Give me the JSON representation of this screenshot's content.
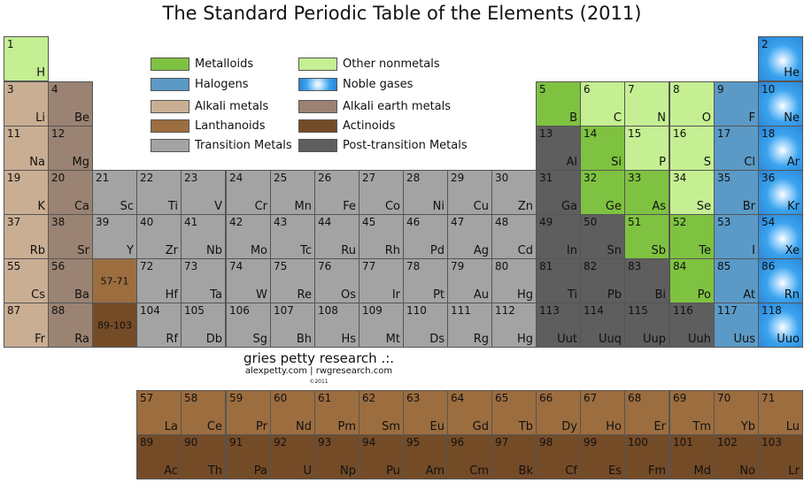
{
  "title": "The Standard Periodic Table of the Elements (2011)",
  "credits": {
    "name": "gries petty research .:.",
    "sites": "alexpetty.com | rwgresearch.com",
    "copyright": "©2011"
  },
  "colors": {
    "alkali": "#c9ae93",
    "alkaline": "#9a8372",
    "transition": "#a3a3a3",
    "post": "#5e5e5e",
    "metalloid": "#7fc241",
    "nonmetal": "#c5ef92",
    "halogen": "#5b9ac6",
    "noble": "#3aa3ee",
    "lanthanoid": "#9c6d3f",
    "actinoid": "#744b27"
  },
  "legend": [
    {
      "label": "Metalloids",
      "category": "metalloid"
    },
    {
      "label": "Other nonmetals",
      "category": "nonmetal"
    },
    {
      "label": "Halogens",
      "category": "halogen"
    },
    {
      "label": "Noble gases",
      "category": "noble"
    },
    {
      "label": "Alkali metals",
      "category": "alkali"
    },
    {
      "label": "Alkali earth metals",
      "category": "alkaline"
    },
    {
      "label": "Lanthanoids",
      "category": "lanthanoid"
    },
    {
      "label": "Actinoids",
      "category": "actinoid"
    },
    {
      "label": "Transition Metals",
      "category": "transition"
    },
    {
      "label": "Post-transition Metals",
      "category": "post"
    }
  ],
  "elements": [
    {
      "n": "1",
      "s": "H",
      "r": 1,
      "c": 1,
      "cat": "nonmetal"
    },
    {
      "n": "2",
      "s": "He",
      "r": 1,
      "c": 18,
      "cat": "noble"
    },
    {
      "n": "3",
      "s": "Li",
      "r": 2,
      "c": 1,
      "cat": "alkali"
    },
    {
      "n": "4",
      "s": "Be",
      "r": 2,
      "c": 2,
      "cat": "alkaline"
    },
    {
      "n": "5",
      "s": "B",
      "r": 2,
      "c": 13,
      "cat": "metalloid"
    },
    {
      "n": "6",
      "s": "C",
      "r": 2,
      "c": 14,
      "cat": "nonmetal"
    },
    {
      "n": "7",
      "s": "N",
      "r": 2,
      "c": 15,
      "cat": "nonmetal"
    },
    {
      "n": "8",
      "s": "O",
      "r": 2,
      "c": 16,
      "cat": "nonmetal"
    },
    {
      "n": "9",
      "s": "F",
      "r": 2,
      "c": 17,
      "cat": "halogen"
    },
    {
      "n": "10",
      "s": "Ne",
      "r": 2,
      "c": 18,
      "cat": "noble"
    },
    {
      "n": "11",
      "s": "Na",
      "r": 3,
      "c": 1,
      "cat": "alkali"
    },
    {
      "n": "12",
      "s": "Mg",
      "r": 3,
      "c": 2,
      "cat": "alkaline"
    },
    {
      "n": "13",
      "s": "Al",
      "r": 3,
      "c": 13,
      "cat": "post"
    },
    {
      "n": "14",
      "s": "Si",
      "r": 3,
      "c": 14,
      "cat": "metalloid"
    },
    {
      "n": "15",
      "s": "P",
      "r": 3,
      "c": 15,
      "cat": "nonmetal"
    },
    {
      "n": "16",
      "s": "S",
      "r": 3,
      "c": 16,
      "cat": "nonmetal"
    },
    {
      "n": "17",
      "s": "Cl",
      "r": 3,
      "c": 17,
      "cat": "halogen"
    },
    {
      "n": "18",
      "s": "Ar",
      "r": 3,
      "c": 18,
      "cat": "noble"
    },
    {
      "n": "19",
      "s": "K",
      "r": 4,
      "c": 1,
      "cat": "alkali"
    },
    {
      "n": "20",
      "s": "Ca",
      "r": 4,
      "c": 2,
      "cat": "alkaline"
    },
    {
      "n": "21",
      "s": "Sc",
      "r": 4,
      "c": 3,
      "cat": "transition"
    },
    {
      "n": "22",
      "s": "Ti",
      "r": 4,
      "c": 4,
      "cat": "transition"
    },
    {
      "n": "23",
      "s": "V",
      "r": 4,
      "c": 5,
      "cat": "transition"
    },
    {
      "n": "24",
      "s": "Cr",
      "r": 4,
      "c": 6,
      "cat": "transition"
    },
    {
      "n": "25",
      "s": "Mn",
      "r": 4,
      "c": 7,
      "cat": "transition"
    },
    {
      "n": "26",
      "s": "Fe",
      "r": 4,
      "c": 8,
      "cat": "transition"
    },
    {
      "n": "27",
      "s": "Co",
      "r": 4,
      "c": 9,
      "cat": "transition"
    },
    {
      "n": "28",
      "s": "Ni",
      "r": 4,
      "c": 10,
      "cat": "transition"
    },
    {
      "n": "29",
      "s": "Cu",
      "r": 4,
      "c": 11,
      "cat": "transition"
    },
    {
      "n": "30",
      "s": "Zn",
      "r": 4,
      "c": 12,
      "cat": "transition"
    },
    {
      "n": "31",
      "s": "Ga",
      "r": 4,
      "c": 13,
      "cat": "post"
    },
    {
      "n": "32",
      "s": "Ge",
      "r": 4,
      "c": 14,
      "cat": "metalloid"
    },
    {
      "n": "33",
      "s": "As",
      "r": 4,
      "c": 15,
      "cat": "metalloid"
    },
    {
      "n": "34",
      "s": "Se",
      "r": 4,
      "c": 16,
      "cat": "nonmetal"
    },
    {
      "n": "35",
      "s": "Br",
      "r": 4,
      "c": 17,
      "cat": "halogen"
    },
    {
      "n": "36",
      "s": "Kr",
      "r": 4,
      "c": 18,
      "cat": "noble"
    },
    {
      "n": "37",
      "s": "Rb",
      "r": 5,
      "c": 1,
      "cat": "alkali"
    },
    {
      "n": "38",
      "s": "Sr",
      "r": 5,
      "c": 2,
      "cat": "alkaline"
    },
    {
      "n": "39",
      "s": "Y",
      "r": 5,
      "c": 3,
      "cat": "transition"
    },
    {
      "n": "40",
      "s": "Zr",
      "r": 5,
      "c": 4,
      "cat": "transition"
    },
    {
      "n": "41",
      "s": "Nb",
      "r": 5,
      "c": 5,
      "cat": "transition"
    },
    {
      "n": "42",
      "s": "Mo",
      "r": 5,
      "c": 6,
      "cat": "transition"
    },
    {
      "n": "43",
      "s": "Tc",
      "r": 5,
      "c": 7,
      "cat": "transition"
    },
    {
      "n": "44",
      "s": "Ru",
      "r": 5,
      "c": 8,
      "cat": "transition"
    },
    {
      "n": "45",
      "s": "Rh",
      "r": 5,
      "c": 9,
      "cat": "transition"
    },
    {
      "n": "46",
      "s": "Pd",
      "r": 5,
      "c": 10,
      "cat": "transition"
    },
    {
      "n": "47",
      "s": "Ag",
      "r": 5,
      "c": 11,
      "cat": "transition"
    },
    {
      "n": "48",
      "s": "Cd",
      "r": 5,
      "c": 12,
      "cat": "transition"
    },
    {
      "n": "49",
      "s": "In",
      "r": 5,
      "c": 13,
      "cat": "post"
    },
    {
      "n": "50",
      "s": "Sn",
      "r": 5,
      "c": 14,
      "cat": "post"
    },
    {
      "n": "51",
      "s": "Sb",
      "r": 5,
      "c": 15,
      "cat": "metalloid"
    },
    {
      "n": "52",
      "s": "Te",
      "r": 5,
      "c": 16,
      "cat": "metalloid"
    },
    {
      "n": "53",
      "s": "I",
      "r": 5,
      "c": 17,
      "cat": "halogen"
    },
    {
      "n": "54",
      "s": "Xe",
      "r": 5,
      "c": 18,
      "cat": "noble"
    },
    {
      "n": "55",
      "s": "Cs",
      "r": 6,
      "c": 1,
      "cat": "alkali"
    },
    {
      "n": "56",
      "s": "Ba",
      "r": 6,
      "c": 2,
      "cat": "alkaline"
    },
    {
      "n": "",
      "s": "",
      "ref": "57-71",
      "r": 6,
      "c": 3,
      "cat": "lanthanoid"
    },
    {
      "n": "72",
      "s": "Hf",
      "r": 6,
      "c": 4,
      "cat": "transition"
    },
    {
      "n": "73",
      "s": "Ta",
      "r": 6,
      "c": 5,
      "cat": "transition"
    },
    {
      "n": "74",
      "s": "W",
      "r": 6,
      "c": 6,
      "cat": "transition"
    },
    {
      "n": "75",
      "s": "Re",
      "r": 6,
      "c": 7,
      "cat": "transition"
    },
    {
      "n": "76",
      "s": "Os",
      "r": 6,
      "c": 8,
      "cat": "transition"
    },
    {
      "n": "77",
      "s": "Ir",
      "r": 6,
      "c": 9,
      "cat": "transition"
    },
    {
      "n": "78",
      "s": "Pt",
      "r": 6,
      "c": 10,
      "cat": "transition"
    },
    {
      "n": "79",
      "s": "Au",
      "r": 6,
      "c": 11,
      "cat": "transition"
    },
    {
      "n": "80",
      "s": "Hg",
      "r": 6,
      "c": 12,
      "cat": "transition"
    },
    {
      "n": "81",
      "s": "Ti",
      "r": 6,
      "c": 13,
      "cat": "post"
    },
    {
      "n": "82",
      "s": "Pb",
      "r": 6,
      "c": 14,
      "cat": "post"
    },
    {
      "n": "83",
      "s": "Bi",
      "r": 6,
      "c": 15,
      "cat": "post"
    },
    {
      "n": "84",
      "s": "Po",
      "r": 6,
      "c": 16,
      "cat": "metalloid"
    },
    {
      "n": "85",
      "s": "At",
      "r": 6,
      "c": 17,
      "cat": "halogen"
    },
    {
      "n": "86",
      "s": "Rn",
      "r": 6,
      "c": 18,
      "cat": "noble"
    },
    {
      "n": "87",
      "s": "Fr",
      "r": 7,
      "c": 1,
      "cat": "alkali"
    },
    {
      "n": "88",
      "s": "Ra",
      "r": 7,
      "c": 2,
      "cat": "alkaline"
    },
    {
      "n": "",
      "s": "",
      "ref": "89-103",
      "r": 7,
      "c": 3,
      "cat": "actinoid"
    },
    {
      "n": "104",
      "s": "Rf",
      "r": 7,
      "c": 4,
      "cat": "transition"
    },
    {
      "n": "105",
      "s": "Db",
      "r": 7,
      "c": 5,
      "cat": "transition"
    },
    {
      "n": "106",
      "s": "Sg",
      "r": 7,
      "c": 6,
      "cat": "transition"
    },
    {
      "n": "107",
      "s": "Bh",
      "r": 7,
      "c": 7,
      "cat": "transition"
    },
    {
      "n": "108",
      "s": "Hs",
      "r": 7,
      "c": 8,
      "cat": "transition"
    },
    {
      "n": "109",
      "s": "Mt",
      "r": 7,
      "c": 9,
      "cat": "transition"
    },
    {
      "n": "110",
      "s": "Ds",
      "r": 7,
      "c": 10,
      "cat": "transition"
    },
    {
      "n": "111",
      "s": "Rg",
      "r": 7,
      "c": 11,
      "cat": "transition"
    },
    {
      "n": "112",
      "s": "Hg",
      "r": 7,
      "c": 12,
      "cat": "transition"
    },
    {
      "n": "113",
      "s": "Uut",
      "r": 7,
      "c": 13,
      "cat": "post"
    },
    {
      "n": "114",
      "s": "Uuq",
      "r": 7,
      "c": 14,
      "cat": "post"
    },
    {
      "n": "115",
      "s": "Uup",
      "r": 7,
      "c": 15,
      "cat": "post"
    },
    {
      "n": "116",
      "s": "Uuh",
      "r": 7,
      "c": 16,
      "cat": "post"
    },
    {
      "n": "117",
      "s": "Uus",
      "r": 7,
      "c": 17,
      "cat": "halogen"
    },
    {
      "n": "118",
      "s": "Uuo",
      "r": 7,
      "c": 18,
      "cat": "noble"
    },
    {
      "n": "57",
      "s": "La",
      "r": 8,
      "c": 4,
      "cat": "lanthanoid"
    },
    {
      "n": "58",
      "s": "Ce",
      "r": 8,
      "c": 5,
      "cat": "lanthanoid"
    },
    {
      "n": "59",
      "s": "Pr",
      "r": 8,
      "c": 6,
      "cat": "lanthanoid"
    },
    {
      "n": "60",
      "s": "Nd",
      "r": 8,
      "c": 7,
      "cat": "lanthanoid"
    },
    {
      "n": "61",
      "s": "Pm",
      "r": 8,
      "c": 8,
      "cat": "lanthanoid"
    },
    {
      "n": "62",
      "s": "Sm",
      "r": 8,
      "c": 9,
      "cat": "lanthanoid"
    },
    {
      "n": "63",
      "s": "Eu",
      "r": 8,
      "c": 10,
      "cat": "lanthanoid"
    },
    {
      "n": "64",
      "s": "Gd",
      "r": 8,
      "c": 11,
      "cat": "lanthanoid"
    },
    {
      "n": "65",
      "s": "Tb",
      "r": 8,
      "c": 12,
      "cat": "lanthanoid"
    },
    {
      "n": "66",
      "s": "Dy",
      "r": 8,
      "c": 13,
      "cat": "lanthanoid"
    },
    {
      "n": "67",
      "s": "Ho",
      "r": 8,
      "c": 14,
      "cat": "lanthanoid"
    },
    {
      "n": "68",
      "s": "Er",
      "r": 8,
      "c": 15,
      "cat": "lanthanoid"
    },
    {
      "n": "69",
      "s": "Tm",
      "r": 8,
      "c": 16,
      "cat": "lanthanoid"
    },
    {
      "n": "70",
      "s": "Yb",
      "r": 8,
      "c": 17,
      "cat": "lanthanoid"
    },
    {
      "n": "71",
      "s": "Lu",
      "r": 8,
      "c": 18,
      "cat": "lanthanoid"
    },
    {
      "n": "89",
      "s": "Ac",
      "r": 9,
      "c": 4,
      "cat": "actinoid"
    },
    {
      "n": "90",
      "s": "Th",
      "r": 9,
      "c": 5,
      "cat": "actinoid"
    },
    {
      "n": "91",
      "s": "Pa",
      "r": 9,
      "c": 6,
      "cat": "actinoid"
    },
    {
      "n": "92",
      "s": "U",
      "r": 9,
      "c": 7,
      "cat": "actinoid"
    },
    {
      "n": "93",
      "s": "Np",
      "r": 9,
      "c": 8,
      "cat": "actinoid"
    },
    {
      "n": "94",
      "s": "Pu",
      "r": 9,
      "c": 9,
      "cat": "actinoid"
    },
    {
      "n": "95",
      "s": "Am",
      "r": 9,
      "c": 10,
      "cat": "actinoid"
    },
    {
      "n": "96",
      "s": "Cm",
      "r": 9,
      "c": 11,
      "cat": "actinoid"
    },
    {
      "n": "97",
      "s": "Bk",
      "r": 9,
      "c": 12,
      "cat": "actinoid"
    },
    {
      "n": "98",
      "s": "Cf",
      "r": 9,
      "c": 13,
      "cat": "actinoid"
    },
    {
      "n": "99",
      "s": "Es",
      "r": 9,
      "c": 14,
      "cat": "actinoid"
    },
    {
      "n": "100",
      "s": "Fm",
      "r": 9,
      "c": 15,
      "cat": "actinoid"
    },
    {
      "n": "101",
      "s": "Md",
      "r": 9,
      "c": 16,
      "cat": "actinoid"
    },
    {
      "n": "102",
      "s": "No",
      "r": 9,
      "c": 17,
      "cat": "actinoid"
    },
    {
      "n": "103",
      "s": "Lr",
      "r": 9,
      "c": 18,
      "cat": "actinoid"
    }
  ]
}
